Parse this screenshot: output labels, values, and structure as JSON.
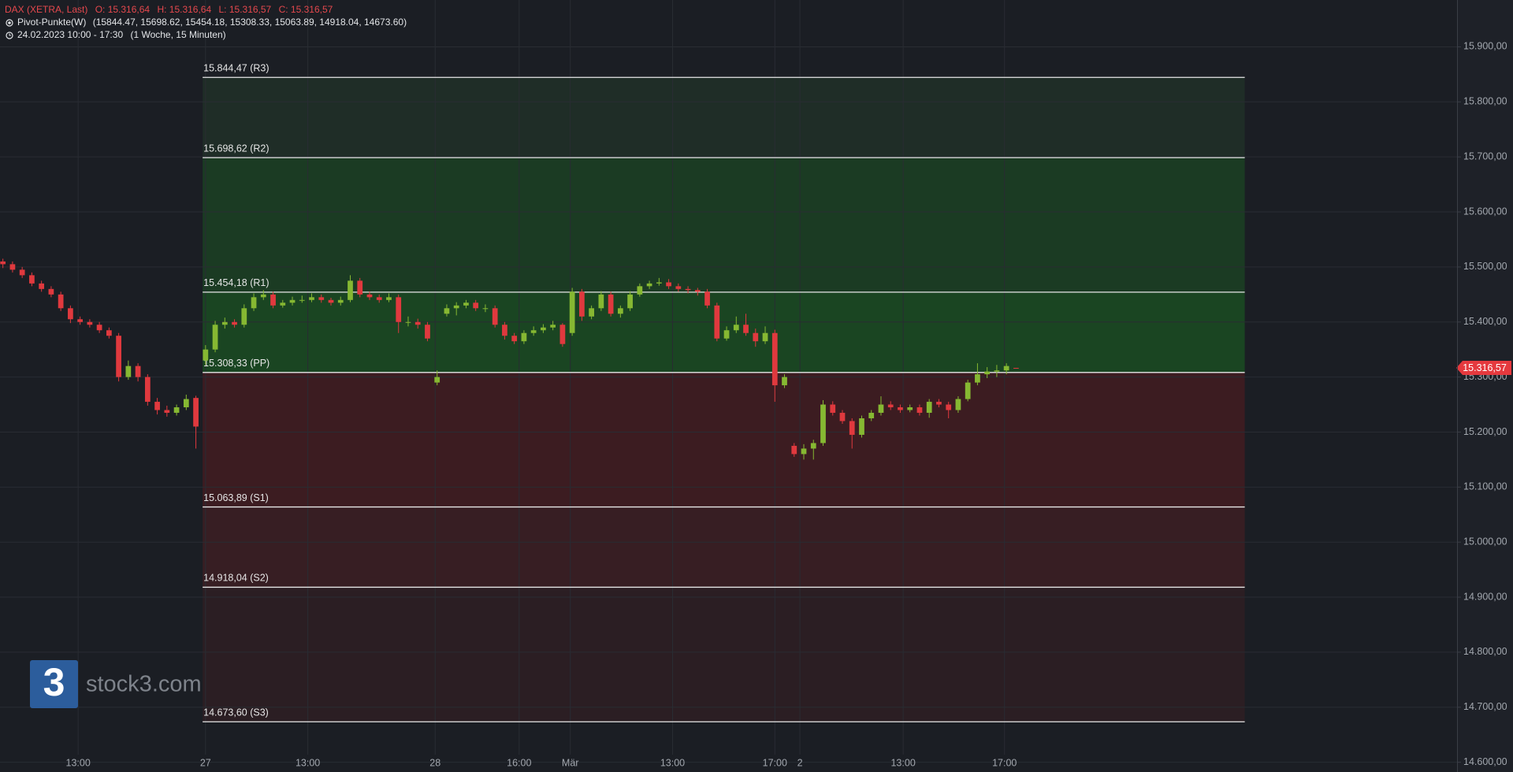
{
  "chart_data": {
    "type": "candlestick",
    "title": "DAX (XETRA, Last)",
    "ohlc_labels": [
      "O: 15.316,64",
      "H: 15.316,64",
      "L: 15.316,57",
      "C: 15.316,57"
    ],
    "indicator": "Pivot-Punkte(W)",
    "indicator_values": "(15844.47,  15698.62,  15454.18,  15308.33,  15063.89,  14918.04,  14673.60)",
    "period": "24.02.2023 10:00 - 17:30",
    "period_note": "(1 Woche, 15 Minuten)",
    "logo_mark": "3",
    "logo": "stock3.com",
    "up_color": "#86b832",
    "down_color": "#e0393e",
    "pivot_color": "#e8e8e8",
    "pivot_band_colors": [
      "#1f2d27",
      "#1b3b23",
      "#1a4522",
      "#3c1c21",
      "#371e23",
      "#2b1e23"
    ],
    "grid": true,
    "last": {
      "value": 15316.57,
      "label": "15.316,57"
    },
    "pivots": [
      {
        "value": 15844.47,
        "label": "15.844,47 (R3)"
      },
      {
        "value": 15698.62,
        "label": "15.698,62 (R2)"
      },
      {
        "value": 15454.18,
        "label": "15.454,18 (R1)"
      },
      {
        "value": 15308.33,
        "label": "15.308,33 (PP)"
      },
      {
        "value": 15063.89,
        "label": "15.063,89 (S1)"
      },
      {
        "value": 14918.04,
        "label": "14.918,04 (S2)"
      },
      {
        "value": 14673.6,
        "label": "14.673,60 (S3)"
      }
    ],
    "xlim": [
      -0.3,
      150.7
    ],
    "xticks": [
      {
        "value": 7.8,
        "label": "13:00"
      },
      {
        "value": 21,
        "label": "27"
      },
      {
        "value": 31.6,
        "label": "13:00"
      },
      {
        "value": 44.8,
        "label": "28"
      },
      {
        "value": 53.5,
        "label": "16:00"
      },
      {
        "value": 58.8,
        "label": "Mär"
      },
      {
        "value": 69.4,
        "label": "13:00"
      },
      {
        "value": 80,
        "label": "17:00"
      },
      {
        "value": 82.6,
        "label": "2"
      },
      {
        "value": 93.3,
        "label": "13:00"
      },
      {
        "value": 103.8,
        "label": "17:00"
      }
    ],
    "ylim": [
      14582.3,
      15985.1
    ],
    "yticks": [
      {
        "value": 14600,
        "label": "14.600,00"
      },
      {
        "value": 14700,
        "label": "14.700,00"
      },
      {
        "value": 14800,
        "label": "14.800,00"
      },
      {
        "value": 14900,
        "label": "14.900,00"
      },
      {
        "value": 15000,
        "label": "15.000,00"
      },
      {
        "value": 15100,
        "label": "15.100,00"
      },
      {
        "value": 15200,
        "label": "15.200,00"
      },
      {
        "value": 15300,
        "label": "15.300,00"
      },
      {
        "value": 15400,
        "label": "15.400,00"
      },
      {
        "value": 15500,
        "label": "15.500,00"
      },
      {
        "value": 15600,
        "label": "15.600,00"
      },
      {
        "value": 15700,
        "label": "15.700,00"
      },
      {
        "value": 15800,
        "label": "15.800,00"
      },
      {
        "value": 15900,
        "label": "15.900,00"
      }
    ],
    "candles": [
      [
        15510,
        15515,
        15498,
        15505
      ],
      [
        15505,
        15510,
        15490,
        15495
      ],
      [
        15495,
        15500,
        15480,
        15485
      ],
      [
        15485,
        15490,
        15465,
        15470
      ],
      [
        15470,
        15475,
        15455,
        15460
      ],
      [
        15460,
        15465,
        15445,
        15450
      ],
      [
        15450,
        15455,
        15420,
        15425
      ],
      [
        15425,
        15430,
        15398,
        15405
      ],
      [
        15405,
        15410,
        15395,
        15400
      ],
      [
        15400,
        15405,
        15390,
        15395
      ],
      [
        15395,
        15400,
        15380,
        15385
      ],
      [
        15385,
        15390,
        15370,
        15375
      ],
      [
        15375,
        15380,
        15292,
        15300
      ],
      [
        15300,
        15330,
        15295,
        15320
      ],
      [
        15320,
        15325,
        15292,
        15300
      ],
      [
        15300,
        15305,
        15248,
        15255
      ],
      [
        15255,
        15262,
        15232,
        15240
      ],
      [
        15240,
        15248,
        15228,
        15235
      ],
      [
        15235,
        15250,
        15230,
        15245
      ],
      [
        15245,
        15268,
        15240,
        15260
      ],
      [
        15262,
        15266,
        15170,
        15210
      ],
      [
        15330,
        15358,
        15322,
        15350
      ],
      [
        15350,
        15402,
        15345,
        15395
      ],
      [
        15395,
        15408,
        15388,
        15400
      ],
      [
        15400,
        15405,
        15390,
        15395
      ],
      [
        15395,
        15432,
        15390,
        15425
      ],
      [
        15425,
        15452,
        15420,
        15445
      ],
      [
        15445,
        15458,
        15440,
        15450
      ],
      [
        15450,
        15455,
        15425,
        15430
      ],
      [
        15430,
        15440,
        15426,
        15435
      ],
      [
        15435,
        15446,
        15430,
        15440
      ],
      [
        15440,
        15448,
        15435,
        15440
      ],
      [
        15440,
        15452,
        15436,
        15445
      ],
      [
        15445,
        15450,
        15435,
        15440
      ],
      [
        15440,
        15444,
        15430,
        15435
      ],
      [
        15435,
        15446,
        15430,
        15440
      ],
      [
        15440,
        15485,
        15436,
        15475
      ],
      [
        15475,
        15480,
        15445,
        15450
      ],
      [
        15450,
        15455,
        15440,
        15445
      ],
      [
        15445,
        15450,
        15435,
        15440
      ],
      [
        15440,
        15452,
        15436,
        15445
      ],
      [
        15445,
        15450,
        15380,
        15400
      ],
      [
        15400,
        15410,
        15392,
        15400
      ],
      [
        15400,
        15406,
        15388,
        15395
      ],
      [
        15395,
        15400,
        15365,
        15370
      ],
      [
        15290,
        15312,
        15285,
        15300
      ],
      [
        15415,
        15432,
        15410,
        15425
      ],
      [
        15425,
        15436,
        15412,
        15430
      ],
      [
        15430,
        15440,
        15425,
        15435
      ],
      [
        15435,
        15440,
        15420,
        15425
      ],
      [
        15425,
        15432,
        15418,
        15425
      ],
      [
        15425,
        15430,
        15390,
        15395
      ],
      [
        15395,
        15400,
        15368,
        15375
      ],
      [
        15375,
        15380,
        15360,
        15365
      ],
      [
        15365,
        15385,
        15360,
        15380
      ],
      [
        15380,
        15392,
        15375,
        15385
      ],
      [
        15385,
        15396,
        15380,
        15390
      ],
      [
        15390,
        15402,
        15385,
        15395
      ],
      [
        15395,
        15398,
        15355,
        15360
      ],
      [
        15380,
        15462,
        15375,
        15455
      ],
      [
        15455,
        15460,
        15402,
        15410
      ],
      [
        15410,
        15430,
        15405,
        15425
      ],
      [
        15425,
        15456,
        15420,
        15450
      ],
      [
        15450,
        15455,
        15410,
        15415
      ],
      [
        15415,
        15430,
        15408,
        15425
      ],
      [
        15425,
        15456,
        15420,
        15450
      ],
      [
        15450,
        15470,
        15446,
        15465
      ],
      [
        15465,
        15475,
        15460,
        15470
      ],
      [
        15470,
        15480,
        15466,
        15472
      ],
      [
        15472,
        15478,
        15460,
        15465
      ],
      [
        15465,
        15470,
        15455,
        15460
      ],
      [
        15460,
        15465,
        15452,
        15458
      ],
      [
        15458,
        15462,
        15448,
        15455
      ],
      [
        15455,
        15460,
        15425,
        15430
      ],
      [
        15430,
        15435,
        15365,
        15370
      ],
      [
        15370,
        15392,
        15366,
        15385
      ],
      [
        15385,
        15410,
        15380,
        15395
      ],
      [
        15395,
        15415,
        15375,
        15380
      ],
      [
        15380,
        15388,
        15355,
        15365
      ],
      [
        15365,
        15392,
        15360,
        15380
      ],
      [
        15380,
        15386,
        15255,
        15285
      ],
      [
        15285,
        15305,
        15280,
        15300
      ],
      [
        15175,
        15180,
        15155,
        15160
      ],
      [
        15160,
        15178,
        15150,
        15170
      ],
      [
        15170,
        15186,
        15150,
        15180
      ],
      [
        15180,
        15258,
        15175,
        15250
      ],
      [
        15250,
        15256,
        15230,
        15235
      ],
      [
        15235,
        15240,
        15215,
        15220
      ],
      [
        15220,
        15225,
        15170,
        15195
      ],
      [
        15195,
        15230,
        15190,
        15225
      ],
      [
        15225,
        15240,
        15220,
        15235
      ],
      [
        15235,
        15265,
        15230,
        15250
      ],
      [
        15250,
        15256,
        15240,
        15245
      ],
      [
        15245,
        15250,
        15235,
        15240
      ],
      [
        15240,
        15250,
        15236,
        15245
      ],
      [
        15245,
        15250,
        15230,
        15235
      ],
      [
        15235,
        15260,
        15226,
        15255
      ],
      [
        15255,
        15260,
        15245,
        15250
      ],
      [
        15250,
        15255,
        15225,
        15240
      ],
      [
        15240,
        15265,
        15235,
        15260
      ],
      [
        15260,
        15295,
        15256,
        15290
      ],
      [
        15290,
        15325,
        15285,
        15305
      ],
      [
        15305,
        15318,
        15298,
        15310
      ],
      [
        15310,
        15322,
        15300,
        15312
      ],
      [
        15312,
        15325,
        15305,
        15320
      ],
      [
        15316.64,
        15316.64,
        15316.57,
        15316.57
      ]
    ]
  }
}
